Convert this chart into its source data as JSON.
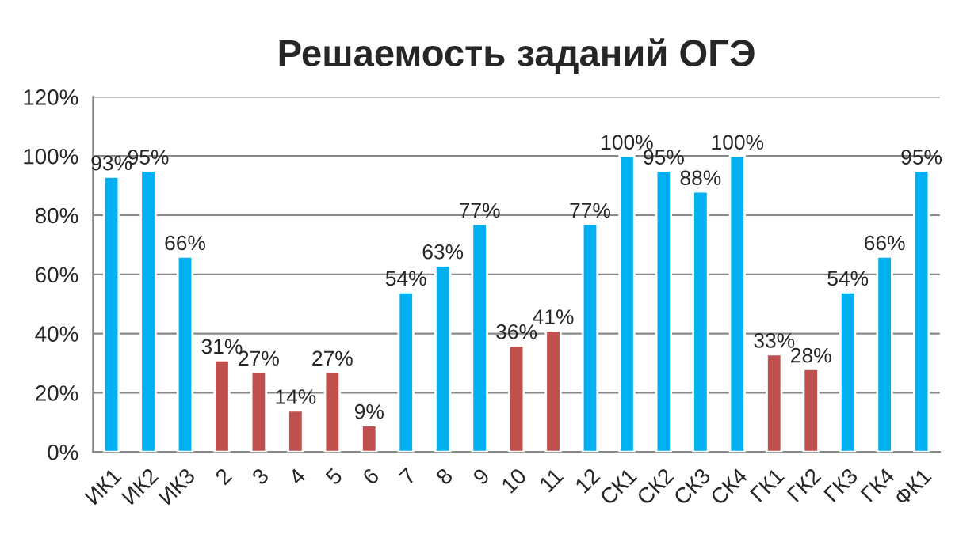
{
  "chart_data": {
    "type": "bar",
    "title": "Решаемость заданий ОГЭ",
    "categories": [
      "ИК1",
      "ИК2",
      "ИК3",
      "2",
      "3",
      "4",
      "5",
      "6",
      "7",
      "8",
      "9",
      "10",
      "11",
      "12",
      "СК1",
      "СК2",
      "СК3",
      "СК4",
      "ГК1",
      "ГК2",
      "ГК3",
      "ГК4",
      "ФК1"
    ],
    "values": [
      93,
      95,
      66,
      31,
      27,
      14,
      27,
      9,
      54,
      63,
      77,
      36,
      41,
      77,
      100,
      95,
      88,
      100,
      33,
      28,
      54,
      66,
      95
    ],
    "colors": [
      "#00b0f0",
      "#00b0f0",
      "#00b0f0",
      "#c0504d",
      "#c0504d",
      "#c0504d",
      "#c0504d",
      "#c0504d",
      "#00b0f0",
      "#00b0f0",
      "#00b0f0",
      "#c0504d",
      "#c0504d",
      "#00b0f0",
      "#00b0f0",
      "#00b0f0",
      "#00b0f0",
      "#00b0f0",
      "#c0504d",
      "#c0504d",
      "#00b0f0",
      "#00b0f0",
      "#00b0f0"
    ],
    "value_labels": [
      "93%",
      "95%",
      "66%",
      "31%",
      "27%",
      "14%",
      "27%",
      "9%",
      "54%",
      "63%",
      "77%",
      "36%",
      "41%",
      "77%",
      "100%",
      "95%",
      "88%",
      "100%",
      "33%",
      "28%",
      "54%",
      "66%",
      "95%"
    ],
    "ylim": [
      0,
      120
    ],
    "yticks": [
      {
        "value": 0,
        "label": "0%"
      },
      {
        "value": 20,
        "label": "20%"
      },
      {
        "value": 40,
        "label": "40%"
      },
      {
        "value": 60,
        "label": "60%"
      },
      {
        "value": 80,
        "label": "80%"
      },
      {
        "value": 100,
        "label": "100%"
      },
      {
        "value": 120,
        "label": "120%"
      }
    ],
    "grid": "y",
    "legend": false
  }
}
